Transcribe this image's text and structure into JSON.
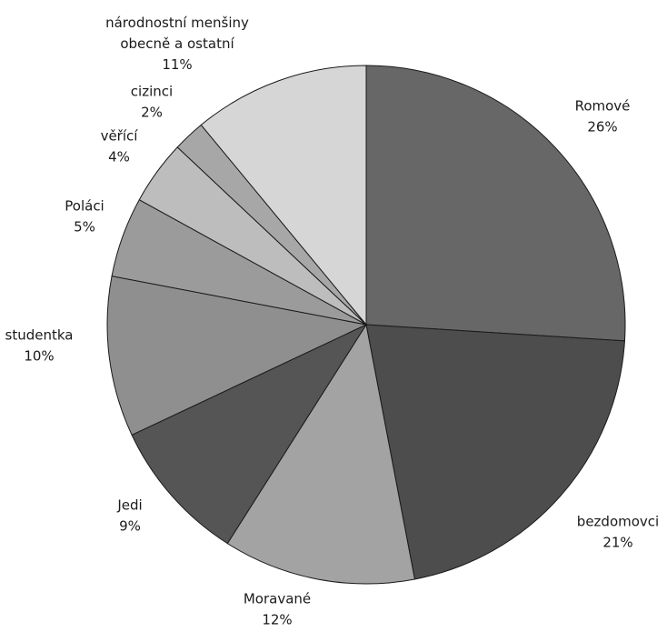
{
  "chart_data": {
    "type": "pie",
    "title": "",
    "start": "12 o'clock",
    "direction": "clockwise",
    "slices": [
      {
        "label": "Romové",
        "value": 26,
        "value_label": "26%",
        "color": "#676767"
      },
      {
        "label": "bezdomovci",
        "value": 21,
        "value_label": "21%",
        "color": "#4d4d4d"
      },
      {
        "label": "Moravané",
        "value": 12,
        "value_label": "12%",
        "color": "#a3a3a3"
      },
      {
        "label": "Jedi",
        "value": 9,
        "value_label": "9%",
        "color": "#555555"
      },
      {
        "label": "studentka",
        "value": 10,
        "value_label": "10%",
        "color": "#8f8f8f"
      },
      {
        "label": "Poláci",
        "value": 5,
        "value_label": "5%",
        "color": "#9b9b9b"
      },
      {
        "label": "věřící",
        "value": 4,
        "value_label": "4%",
        "color": "#bdbdbd"
      },
      {
        "label": "cizinci",
        "value": 2,
        "value_label": "2%",
        "color": "#a7a7a7"
      },
      {
        "label": "národnostní menšiny obecně a ostatní",
        "label_lines": [
          "národnostní menšiny",
          "obecně a ostatní"
        ],
        "value": 11,
        "value_label": "11%",
        "color": "#d6d6d6"
      }
    ]
  }
}
